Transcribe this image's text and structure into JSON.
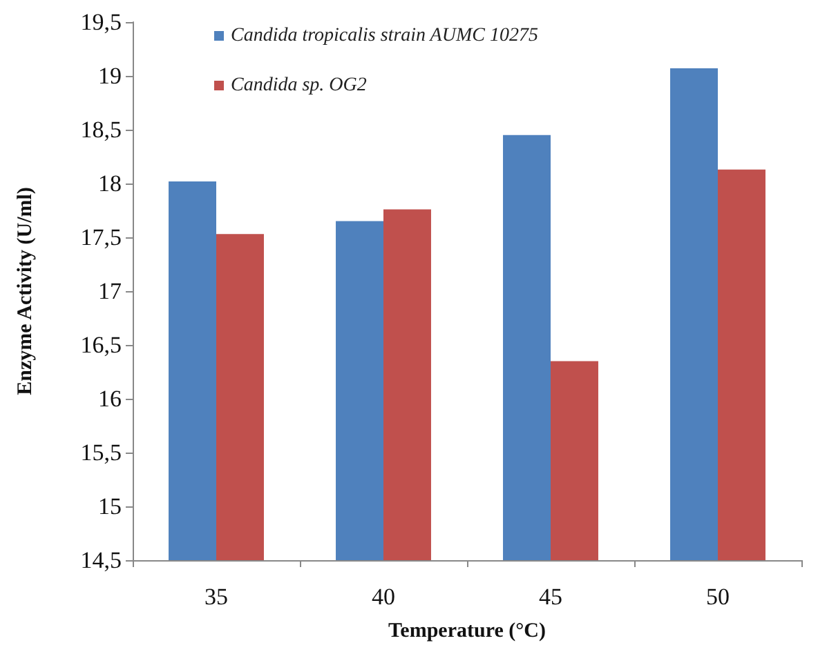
{
  "chart_data": {
    "type": "bar",
    "xlabel": "Temperature (°C)",
    "ylabel": "Enzyme Activity (U/ml)",
    "categories": [
      "35",
      "40",
      "45",
      "50"
    ],
    "series": [
      {
        "name": "Candida tropicalis strain AUMC 10275",
        "color": "#4f81bd",
        "values": [
          18.02,
          17.65,
          18.45,
          19.07
        ]
      },
      {
        "name": "Candida sp. OG2",
        "color": "#c0504d",
        "values": [
          17.53,
          17.76,
          16.35,
          18.13
        ]
      }
    ],
    "ylim": [
      14.5,
      19.5
    ],
    "yticks": [
      {
        "value": 14.5,
        "label": "14,5"
      },
      15,
      {
        "value": 15.5,
        "label": "15,5"
      },
      16,
      {
        "value": 16.5,
        "label": "16,5"
      },
      17,
      {
        "value": 17.5,
        "label": "17,5"
      },
      18,
      {
        "value": 18.5,
        "label": "18,5"
      },
      19,
      {
        "value": 19.5,
        "label": "19,5"
      }
    ],
    "grid": false,
    "legend": "top left"
  }
}
